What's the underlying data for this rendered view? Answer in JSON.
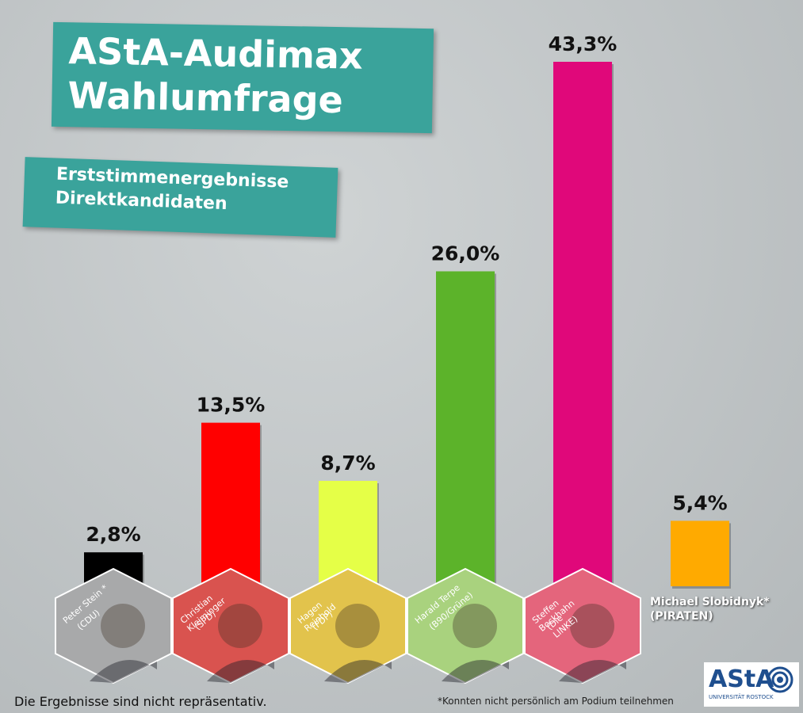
{
  "chart_data": {
    "type": "bar",
    "title": "AStA-Audimax Wahlumfrage",
    "subtitle": "Erststimmenergebnisse Direktkandidaten",
    "categories": [
      "Peter Stein *",
      "Christian Kleiminger",
      "Hagen Reinhold",
      "Harald Terpe",
      "Steffen Bockhahn",
      "Michael Slobidnyk*"
    ],
    "parties": [
      "(CDU)",
      "(SPD)",
      "(FDP)",
      "(B90/Grüne)",
      "(Die LINKE)",
      "(PIRATEN)"
    ],
    "values": [
      2.8,
      13.5,
      8.7,
      26.0,
      43.3,
      5.4
    ],
    "value_labels": [
      "2,8%",
      "13,5%",
      "8,7%",
      "26,0%",
      "43,3%",
      "5,4%"
    ],
    "colors": [
      "#000000",
      "#ff0000",
      "#e5ff47",
      "#5cb32a",
      "#e0087a",
      "#ffaa00"
    ],
    "ylim": [
      0,
      45
    ],
    "note": "Die Ergebnisse sind nicht repräsentativ.",
    "footnote": "*Konnten nicht persönlich am Podium teilnehmen",
    "logo": "AStA",
    "logo_subtitle": "UNIVERSITÄT ROSTOCK"
  }
}
